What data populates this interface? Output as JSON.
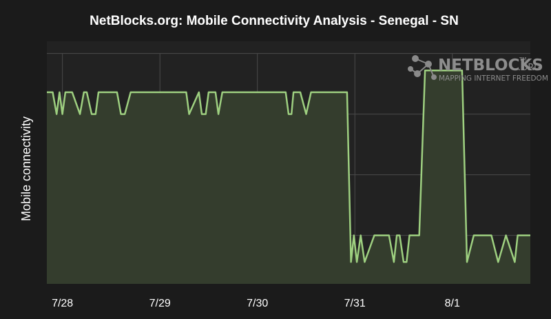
{
  "chart_data": {
    "type": "line",
    "title": "NetBlocks.org: Mobile Connectivity Analysis - Senegal - SN",
    "xlabel": "",
    "ylabel": "Mobile connectivity",
    "x_tick_labels": [
      "7/28",
      "7/29",
      "7/30",
      "7/31",
      "8/1"
    ],
    "x_tick_values": [
      0,
      1,
      2,
      3,
      4
    ],
    "xlim": [
      -0.16,
      4.8
    ],
    "ylim": [
      0,
      100
    ],
    "y_gridlines": [
      20,
      45,
      70,
      95
    ],
    "grid": true,
    "legend": "none",
    "series": [
      {
        "values_x": [
          -0.16,
          -0.1,
          -0.06,
          -0.03,
          0.0,
          0.03,
          0.06,
          0.1,
          0.18,
          0.22,
          0.25,
          0.3,
          0.34,
          0.37,
          0.42,
          0.47,
          0.5,
          0.56,
          0.6,
          0.64,
          0.7,
          0.77,
          0.84,
          0.87,
          0.92,
          0.97,
          1.07,
          1.17,
          1.27,
          1.3,
          1.4,
          1.43,
          1.47,
          1.5,
          1.57,
          1.6,
          1.64,
          1.67,
          1.7,
          1.75,
          1.8,
          1.87,
          1.97,
          2.1,
          2.25,
          2.29,
          2.32,
          2.35,
          2.37,
          2.44,
          2.5,
          2.55,
          2.75,
          2.79,
          2.83,
          2.85,
          2.88,
          2.92,
          2.96,
          2.99,
          3.02,
          3.06,
          3.1,
          3.2,
          3.3,
          3.35,
          3.4,
          3.43,
          3.46,
          3.5,
          3.53,
          3.56,
          3.6,
          3.66,
          3.72,
          3.76,
          3.83,
          3.88,
          3.92,
          3.97,
          4.04,
          4.1,
          4.15,
          4.22,
          4.3,
          4.35,
          4.4,
          4.47,
          4.55,
          4.64,
          4.67,
          4.72,
          4.77,
          4.8
        ],
        "values_y": [
          79,
          79,
          70,
          79,
          70,
          79,
          79,
          79,
          70,
          79,
          79,
          70,
          70,
          79,
          79,
          79,
          79,
          79,
          70,
          70,
          79,
          79,
          79,
          79,
          79,
          79,
          79,
          79,
          79,
          70,
          79,
          70,
          70,
          79,
          79,
          70,
          79,
          79,
          79,
          79,
          79,
          79,
          79,
          79,
          79,
          79,
          70,
          70,
          79,
          79,
          70,
          79,
          79,
          79,
          79,
          79,
          79,
          79,
          9,
          20,
          9,
          20,
          9,
          20,
          20,
          20,
          9,
          20,
          20,
          9,
          9,
          20,
          20,
          20,
          88,
          88,
          88,
          88,
          88,
          88,
          88,
          88,
          9,
          20,
          20,
          20,
          20,
          9,
          20,
          9,
          20,
          20,
          20,
          20
        ]
      }
    ],
    "colors": {
      "background": "#1b1b1b",
      "line": "#9ed080",
      "fill": "#343d2d",
      "grid": "#4b4b4b",
      "text": "#ffffff"
    }
  },
  "brand": {
    "name": "NETBLOCKS",
    "tm": "TM",
    "suffix": ".ORG",
    "tagline": "MAPPING INTERNET FREEDOM"
  }
}
